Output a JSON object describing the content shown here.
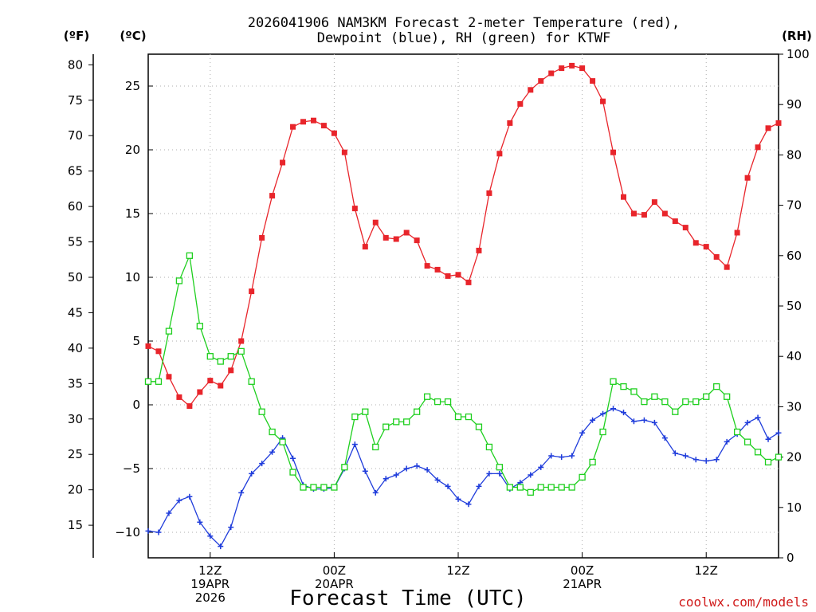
{
  "chart_data": {
    "type": "line",
    "title": "2026041906 NAM3KM Forecast 2-meter Temperature (red), Dewpoint (blue), RH (green) for KTWF",
    "title_lines": [
      "2026041906 NAM3KM Forecast 2-meter Temperature (red),",
      "Dewpoint (blue), RH (green) for KTWF"
    ],
    "xlabel": "Forecast Time (UTC)",
    "credit": "coolwx.com/models",
    "units": {
      "fahrenheit": "(ºF)",
      "celsius": "(ºC)",
      "rh": "(RH)"
    },
    "x_hours_since_start": {
      "start_label": "2026-04-19 06Z",
      "step_hours": 1,
      "count": 62
    },
    "x_ticks": [
      {
        "hour": 6,
        "lines": [
          "12Z",
          "19APR",
          "2026"
        ]
      },
      {
        "hour": 18,
        "lines": [
          "00Z",
          "20APR"
        ]
      },
      {
        "hour": 30,
        "lines": [
          "12Z"
        ]
      },
      {
        "hour": 42,
        "lines": [
          "00Z",
          "21APR"
        ]
      },
      {
        "hour": 54,
        "lines": [
          "12Z"
        ]
      }
    ],
    "y_celsius": {
      "ylim": [
        -12,
        27.5
      ],
      "ticks": [
        -10,
        -5,
        0,
        5,
        10,
        15,
        20,
        25
      ]
    },
    "y_fahrenheit": {
      "ylim": [
        10.4,
        81.5
      ],
      "ticks": [
        15,
        20,
        25,
        30,
        35,
        40,
        45,
        50,
        55,
        60,
        65,
        70,
        75,
        80
      ]
    },
    "y_rh": {
      "ylim": [
        0,
        100
      ],
      "ticks": [
        0,
        10,
        20,
        30,
        40,
        50,
        60,
        70,
        80,
        90,
        100
      ]
    },
    "series": [
      {
        "name": "2-meter Temperature",
        "axis": "celsius",
        "color": "#e8252b",
        "marker": "filled-square",
        "values": [
          4.6,
          4.2,
          2.2,
          0.6,
          -0.1,
          1.0,
          1.9,
          1.5,
          2.7,
          5.0,
          8.9,
          13.1,
          16.4,
          19.0,
          21.8,
          22.2,
          22.3,
          21.9,
          21.3,
          19.8,
          15.4,
          12.4,
          14.3,
          13.1,
          13.0,
          13.5,
          12.9,
          10.9,
          10.6,
          10.1,
          10.2,
          9.6,
          12.1,
          16.6,
          19.7,
          22.1,
          23.6,
          24.7,
          25.4,
          26.0,
          26.4,
          26.6,
          26.4,
          25.4,
          23.8,
          19.8,
          16.3,
          15.0,
          14.9,
          15.9,
          15.0,
          14.4,
          13.9,
          12.7,
          12.4,
          11.6,
          10.8,
          13.5,
          17.8,
          20.2,
          21.7,
          22.1
        ]
      },
      {
        "name": "Dewpoint",
        "axis": "celsius",
        "color": "#1f3cdb",
        "marker": "plus",
        "values": [
          -9.9,
          -10.0,
          -8.5,
          -7.5,
          -7.2,
          -9.2,
          -10.3,
          -11.1,
          -9.6,
          -6.9,
          -5.4,
          -4.6,
          -3.7,
          -2.6,
          -4.2,
          -6.3,
          -6.6,
          -6.6,
          -6.5,
          -5.0,
          -3.1,
          -5.2,
          -6.9,
          -5.8,
          -5.5,
          -5.0,
          -4.8,
          -5.1,
          -5.9,
          -6.4,
          -7.4,
          -7.8,
          -6.4,
          -5.4,
          -5.4,
          -6.6,
          -6.1,
          -5.5,
          -4.9,
          -4.0,
          -4.1,
          -4.0,
          -2.2,
          -1.2,
          -0.7,
          -0.3,
          -0.6,
          -1.3,
          -1.2,
          -1.4,
          -2.6,
          -3.8,
          -4.0,
          -4.3,
          -4.4,
          -4.3,
          -2.9,
          -2.3,
          -1.4,
          -1.0,
          -2.7,
          -2.2
        ]
      },
      {
        "name": "RH",
        "axis": "rh",
        "color": "#1ecf1e",
        "marker": "open-square",
        "values": [
          35,
          35,
          45,
          55,
          60,
          46,
          40,
          39,
          40,
          41,
          35,
          29,
          25,
          23,
          17,
          14,
          14,
          14,
          14,
          18,
          28,
          29,
          22,
          26,
          27,
          27,
          29,
          32,
          31,
          31,
          28,
          28,
          26,
          22,
          18,
          14,
          14,
          13,
          14,
          14,
          14,
          14,
          16,
          19,
          25,
          35,
          34,
          33,
          31,
          32,
          31,
          29,
          31,
          31,
          32,
          34,
          32,
          25,
          23,
          21,
          19,
          20
        ]
      }
    ]
  }
}
